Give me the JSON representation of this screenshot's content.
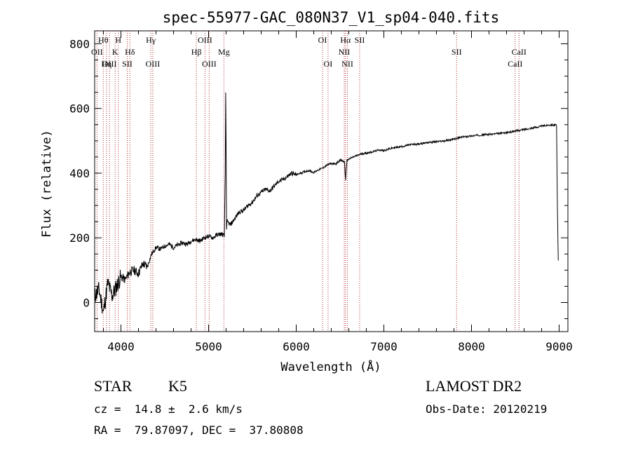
{
  "chart_data": {
    "type": "line",
    "title": "spec-55977-GAC_080N37_V1_sp04-040.fits",
    "xlabel": "Wavelength (Å)",
    "ylabel": "Flux (relative)",
    "xlim": [
      3700,
      9100
    ],
    "ylim": [
      -90,
      840
    ],
    "xticks": [
      4000,
      5000,
      6000,
      7000,
      8000,
      9000
    ],
    "yticks": [
      0,
      200,
      400,
      600,
      800
    ],
    "grid": false,
    "series": [
      {
        "color": "#000000",
        "points": [
          [
            3700,
            20
          ],
          [
            3750,
            40
          ],
          [
            3800,
            -30
          ],
          [
            3850,
            60
          ],
          [
            3900,
            20
          ],
          [
            3950,
            50
          ],
          [
            4000,
            80
          ],
          [
            4050,
            70
          ],
          [
            4100,
            95
          ],
          [
            4150,
            100
          ],
          [
            4200,
            90
          ],
          [
            4250,
            120
          ],
          [
            4300,
            110
          ],
          [
            4350,
            150
          ],
          [
            4400,
            170
          ],
          [
            4450,
            165
          ],
          [
            4500,
            175
          ],
          [
            4550,
            180
          ],
          [
            4600,
            170
          ],
          [
            4650,
            178
          ],
          [
            4700,
            185
          ],
          [
            4750,
            180
          ],
          [
            4800,
            190
          ],
          [
            4850,
            195
          ],
          [
            4900,
            190
          ],
          [
            4950,
            200
          ],
          [
            5000,
            205
          ],
          [
            5050,
            200
          ],
          [
            5100,
            210
          ],
          [
            5150,
            212
          ],
          [
            5180,
            205
          ],
          [
            5190,
            400
          ],
          [
            5195,
            650
          ],
          [
            5200,
            500
          ],
          [
            5205,
            220
          ],
          [
            5210,
            250
          ],
          [
            5250,
            240
          ],
          [
            5300,
            260
          ],
          [
            5350,
            280
          ],
          [
            5400,
            285
          ],
          [
            5450,
            300
          ],
          [
            5500,
            310
          ],
          [
            5550,
            330
          ],
          [
            5600,
            340
          ],
          [
            5650,
            350
          ],
          [
            5700,
            345
          ],
          [
            5750,
            360
          ],
          [
            5800,
            375
          ],
          [
            5850,
            380
          ],
          [
            5900,
            390
          ],
          [
            5950,
            400
          ],
          [
            6000,
            395
          ],
          [
            6050,
            400
          ],
          [
            6100,
            405
          ],
          [
            6150,
            408
          ],
          [
            6200,
            402
          ],
          [
            6250,
            410
          ],
          [
            6300,
            415
          ],
          [
            6350,
            425
          ],
          [
            6400,
            430
          ],
          [
            6450,
            428
          ],
          [
            6500,
            440
          ],
          [
            6550,
            435
          ],
          [
            6563,
            380
          ],
          [
            6580,
            440
          ],
          [
            6650,
            450
          ],
          [
            6700,
            455
          ],
          [
            6750,
            460
          ],
          [
            6800,
            462
          ],
          [
            6850,
            465
          ],
          [
            6900,
            468
          ],
          [
            6950,
            472
          ],
          [
            7000,
            470
          ],
          [
            7100,
            478
          ],
          [
            7200,
            482
          ],
          [
            7300,
            488
          ],
          [
            7400,
            490
          ],
          [
            7500,
            495
          ],
          [
            7600,
            497
          ],
          [
            7700,
            500
          ],
          [
            7800,
            505
          ],
          [
            7900,
            512
          ],
          [
            8000,
            515
          ],
          [
            8100,
            518
          ],
          [
            8200,
            520
          ],
          [
            8300,
            522
          ],
          [
            8400,
            525
          ],
          [
            8500,
            530
          ],
          [
            8600,
            535
          ],
          [
            8700,
            540
          ],
          [
            8800,
            545
          ],
          [
            8900,
            550
          ],
          [
            8970,
            548
          ],
          [
            8980,
            300
          ],
          [
            8990,
            130
          ]
        ]
      }
    ],
    "line_labels": [
      {
        "text": "Hθ",
        "wave": 3798,
        "row": 1
      },
      {
        "text": "OII",
        "wave": 3727,
        "row": 2
      },
      {
        "text": "OIII",
        "wave": 3869,
        "row": 3
      },
      {
        "text": "Hη",
        "wave": 3835,
        "row": 3
      },
      {
        "text": "H",
        "wave": 3970,
        "row": 1
      },
      {
        "text": "K",
        "wave": 3934,
        "row": 2
      },
      {
        "text": "Hδ",
        "wave": 4102,
        "row": 2
      },
      {
        "text": "SII",
        "wave": 4072,
        "row": 3
      },
      {
        "text": "Hγ",
        "wave": 4341,
        "row": 1
      },
      {
        "text": "OIII",
        "wave": 4363,
        "row": 3
      },
      {
        "text": "OIII",
        "wave": 4959,
        "row": 1
      },
      {
        "text": "Hβ",
        "wave": 4861,
        "row": 2
      },
      {
        "text": "OIII",
        "wave": 5007,
        "row": 3
      },
      {
        "text": "Mg",
        "wave": 5175,
        "row": 2
      },
      {
        "text": "OI",
        "wave": 6300,
        "row": 1
      },
      {
        "text": "OI",
        "wave": 6363,
        "row": 3
      },
      {
        "text": "Hα",
        "wave": 6563,
        "row": 1
      },
      {
        "text": "SII",
        "wave": 6724,
        "row": 1
      },
      {
        "text": "NII",
        "wave": 6548,
        "row": 2
      },
      {
        "text": "NII",
        "wave": 6584,
        "row": 3
      },
      {
        "text": "SII",
        "wave": 7830,
        "row": 2
      },
      {
        "text": "CaII",
        "wave": 8542,
        "row": 2
      },
      {
        "text": "CaII",
        "wave": 8498,
        "row": 3
      }
    ],
    "line_marks": [
      3727,
      3798,
      3835,
      3869,
      3934,
      3970,
      4072,
      4102,
      4341,
      4363,
      4861,
      4959,
      5007,
      5175,
      6300,
      6363,
      6548,
      6563,
      6584,
      6724,
      7830,
      8498,
      8542
    ]
  },
  "info": {
    "object_class": "STAR",
    "subclass": "K5",
    "survey": "LAMOST DR2",
    "redshift": "cz =  14.8 ±  2.6 km/s",
    "obs_date": "Obs-Date: 20120219",
    "coords": "RA =  79.87097, DEC =  37.80808"
  }
}
